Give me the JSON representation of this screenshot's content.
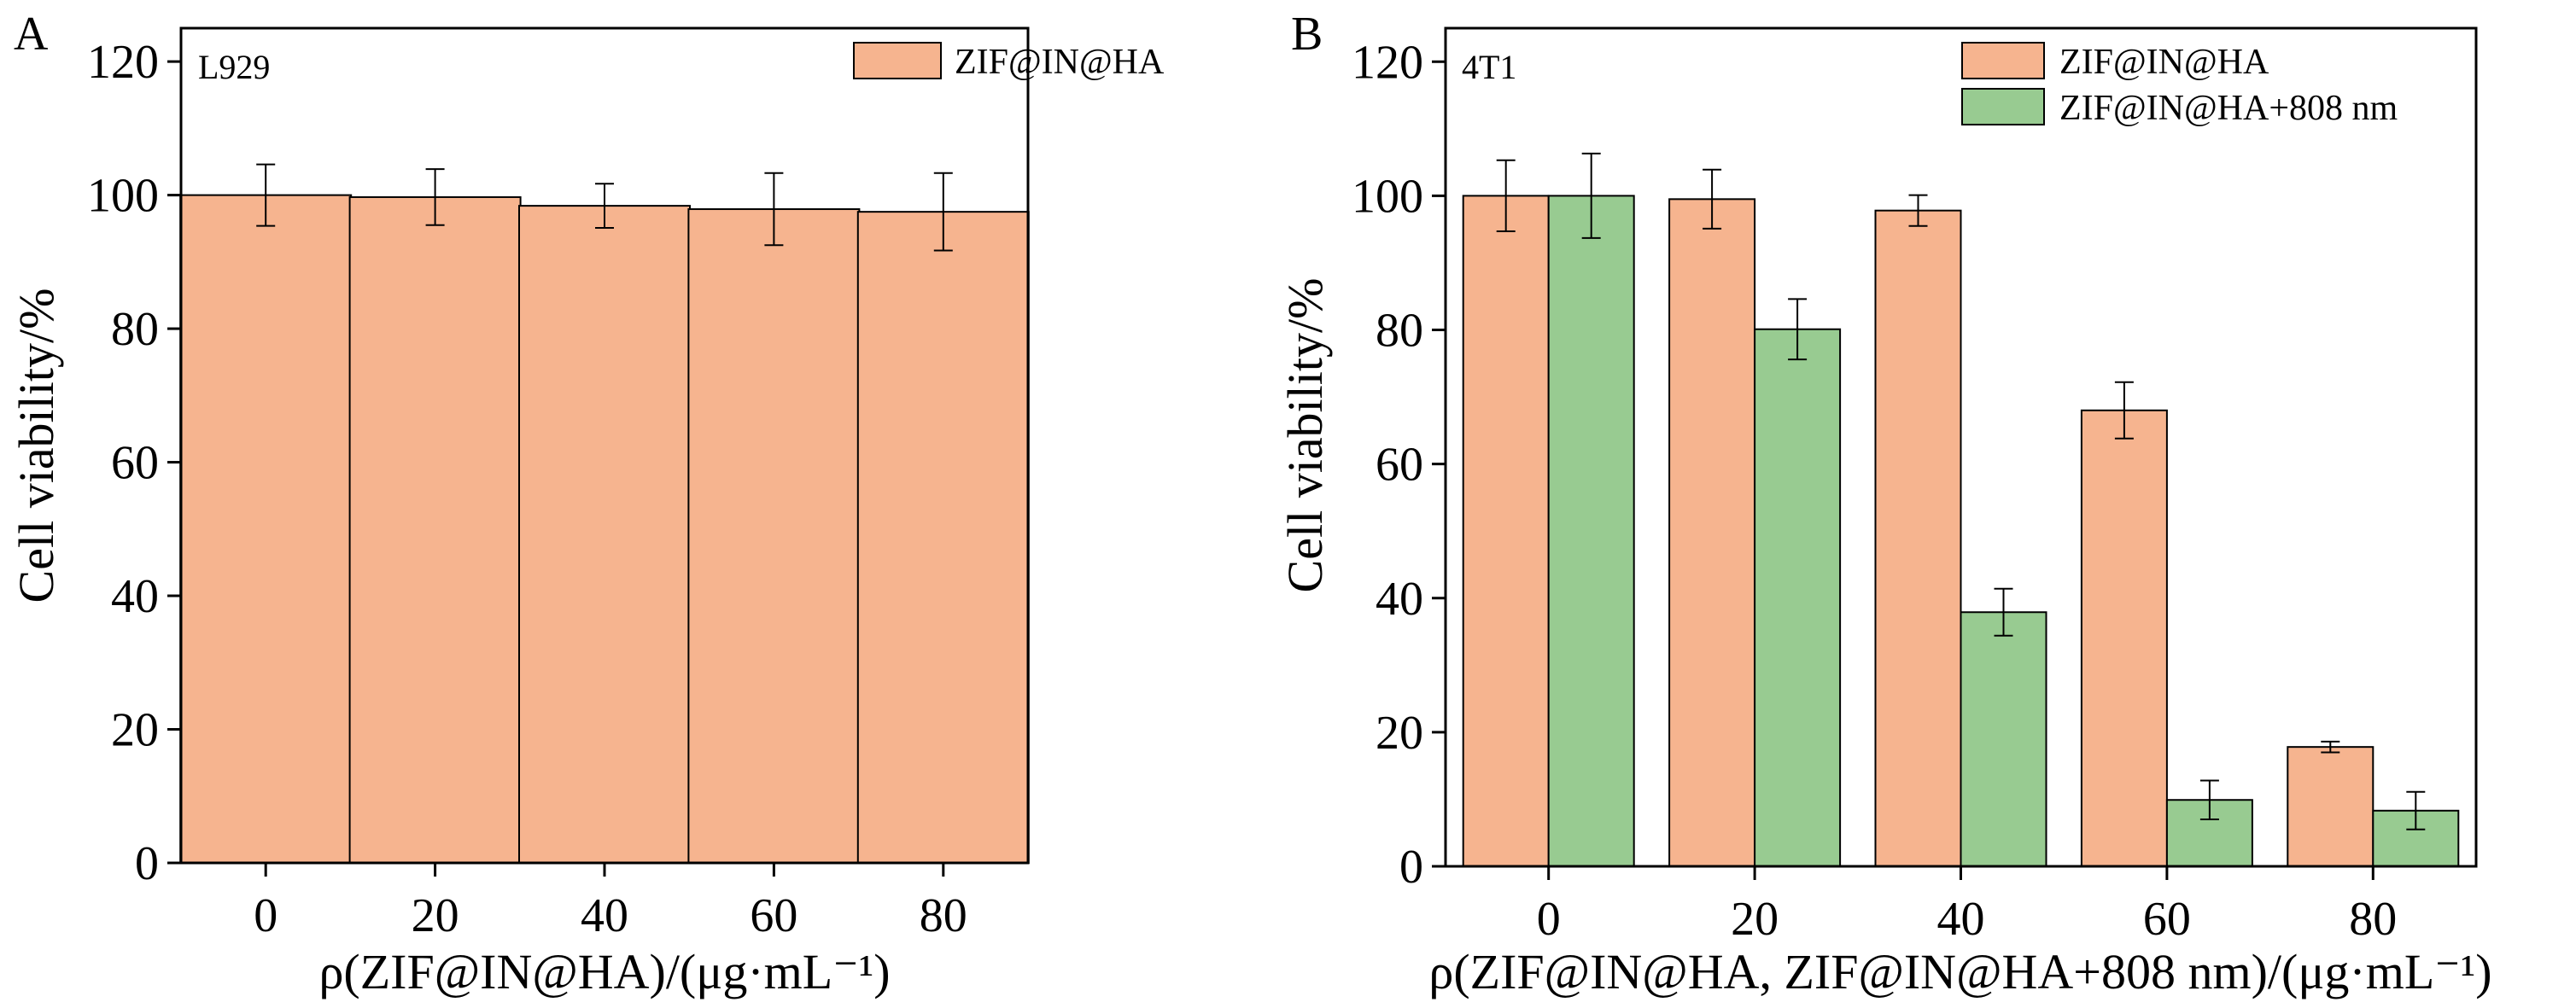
{
  "chart_data": [
    {
      "type": "bar",
      "panel_label": "A",
      "cell_line": "L929",
      "categories": [
        "0",
        "20",
        "40",
        "60",
        "80"
      ],
      "series": [
        {
          "name": "ZIF@IN@HA",
          "color": "#F6B48F",
          "values": [
            100,
            99.7,
            98.4,
            97.9,
            97.5
          ],
          "errors": [
            4.6,
            4.2,
            3.3,
            5.4,
            5.8
          ]
        }
      ],
      "xlabel": "ρ(ZIF@IN@HA)/(μg·mL⁻¹)",
      "ylabel": "Cell viability/%",
      "ylim": [
        0,
        125
      ],
      "yticks": [
        0,
        20,
        40,
        60,
        80,
        100,
        120
      ],
      "grid": false,
      "legend_position": "top-right"
    },
    {
      "type": "bar",
      "panel_label": "B",
      "cell_line": "4T1",
      "categories": [
        "0",
        "20",
        "40",
        "60",
        "80"
      ],
      "series": [
        {
          "name": "ZIF@IN@HA",
          "color": "#F6B48F",
          "values": [
            100,
            99.5,
            97.8,
            68,
            17.8
          ],
          "errors": [
            5.3,
            4.4,
            2.3,
            4.2,
            0.8
          ]
        },
        {
          "name": "ZIF@IN@HA+808 nm",
          "color": "#98CB91",
          "values": [
            100,
            80.1,
            37.9,
            9.9,
            8.3
          ],
          "errors": [
            6.3,
            4.5,
            3.5,
            2.9,
            2.8
          ]
        }
      ],
      "xlabel": "ρ(ZIF@IN@HA, ZIF@IN@HA+808 nm)/(μg·mL⁻¹)",
      "ylabel": "Cell viability/%",
      "ylim": [
        0,
        125
      ],
      "yticks": [
        0,
        20,
        40,
        60,
        80,
        100,
        120
      ],
      "grid": false,
      "legend_position": "top-right"
    }
  ]
}
